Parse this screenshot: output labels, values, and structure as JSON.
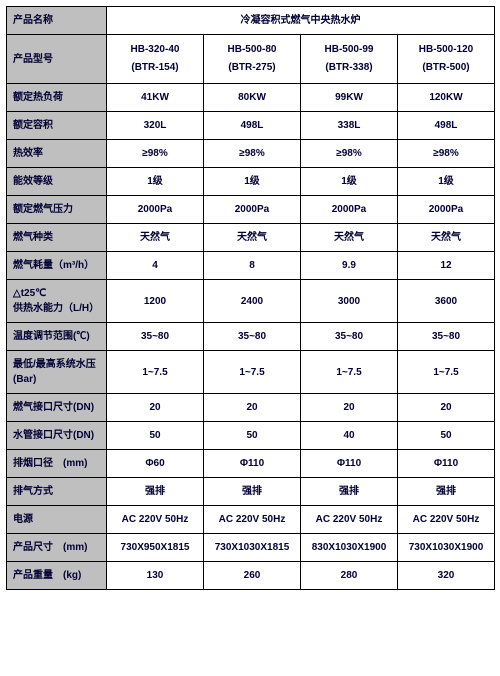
{
  "table": {
    "productNameLabel": "产品名称",
    "productNameValue": "冷凝容积式燃气中央热水炉",
    "modelLabel": "产品型号",
    "models": [
      {
        "top": "HB-320-40",
        "bottom": "(BTR-154)"
      },
      {
        "top": "HB-500-80",
        "bottom": "(BTR-275)"
      },
      {
        "top": "HB-500-99",
        "bottom": "(BTR-338)"
      },
      {
        "top": "HB-500-120",
        "bottom": "(BTR-500)"
      }
    ],
    "rows": [
      {
        "label": "额定热负荷",
        "values": [
          "41KW",
          "80KW",
          "99KW",
          "120KW"
        ]
      },
      {
        "label": "额定容积",
        "values": [
          "320L",
          "498L",
          "338L",
          "498L"
        ]
      },
      {
        "label": "热效率",
        "values": [
          "≥98%",
          "≥98%",
          "≥98%",
          "≥98%"
        ]
      },
      {
        "label": "能效等级",
        "values": [
          "1级",
          "1级",
          "1级",
          "1级"
        ]
      },
      {
        "label": "额定燃气压力",
        "values": [
          "2000Pa",
          "2000Pa",
          "2000Pa",
          "2000Pa"
        ]
      },
      {
        "label": "燃气种类",
        "values": [
          "天然气",
          "天然气",
          "天然气",
          "天然气"
        ]
      },
      {
        "label": "燃气耗量（m³/h）",
        "values": [
          "4",
          "8",
          "9.9",
          "12"
        ]
      },
      {
        "label": "△t25℃\n供热水能力（L/H）",
        "values": [
          "1200",
          "2400",
          "3000",
          "3600"
        ]
      },
      {
        "label": "温度调节范围(℃)",
        "values": [
          "35~80",
          "35~80",
          "35~80",
          "35~80"
        ]
      },
      {
        "label": "最低/最高系统水压(Bar)",
        "values": [
          "1~7.5",
          "1~7.5",
          "1~7.5",
          "1~7.5"
        ]
      },
      {
        "label": "燃气接口尺寸(DN)",
        "values": [
          "20",
          "20",
          "20",
          "20"
        ]
      },
      {
        "label": "水管接口尺寸(DN)",
        "values": [
          "50",
          "50",
          "40",
          "50"
        ]
      },
      {
        "label": "排烟口径　(mm)",
        "values": [
          "Φ60",
          "Φ110",
          "Φ110",
          "Φ110"
        ]
      },
      {
        "label": "排气方式",
        "values": [
          "强排",
          "强排",
          "强排",
          "强排"
        ]
      },
      {
        "label": "电源",
        "values": [
          "AC 220V 50Hz",
          "AC 220V 50Hz",
          "AC 220V 50Hz",
          "AC 220V 50Hz"
        ]
      },
      {
        "label": "产品尺寸　(mm)",
        "values": [
          "730X950X1815",
          "730X1030X1815",
          "830X1030X1900",
          "730X1030X1900"
        ]
      },
      {
        "label": "产品重量　(kg)",
        "values": [
          "130",
          "260",
          "280",
          "320"
        ]
      }
    ]
  }
}
